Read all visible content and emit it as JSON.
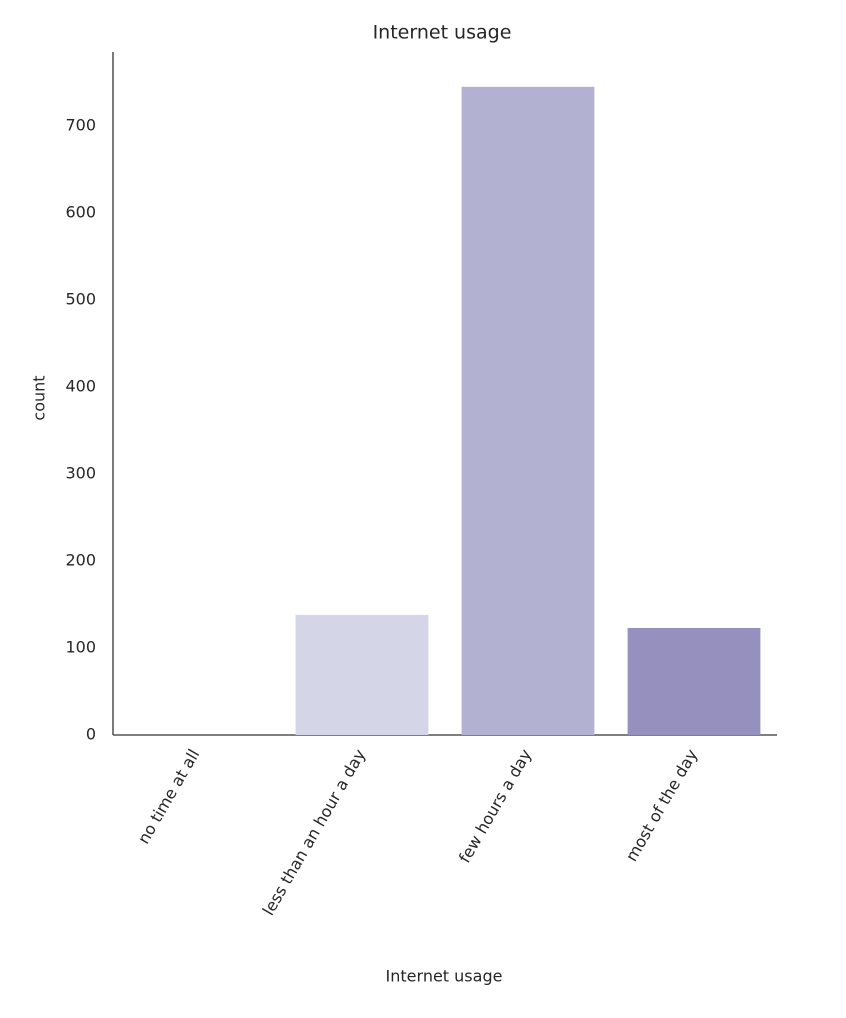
{
  "chart_data": {
    "type": "bar",
    "title": "Internet usage",
    "x_label": "Internet usage",
    "y_label": "count",
    "categories": [
      "no time at all",
      "less than an hour a day",
      "few hours a day",
      "most of the day"
    ],
    "values": [
      0,
      138,
      745,
      123
    ],
    "colors": [
      "#efedf5",
      "#d5d5e8",
      "#b2b1d2",
      "#9690bf"
    ],
    "ylim": [
      0,
      785
    ],
    "yticks": [
      0,
      100,
      200,
      300,
      400,
      500,
      600,
      700
    ],
    "grid": false
  }
}
